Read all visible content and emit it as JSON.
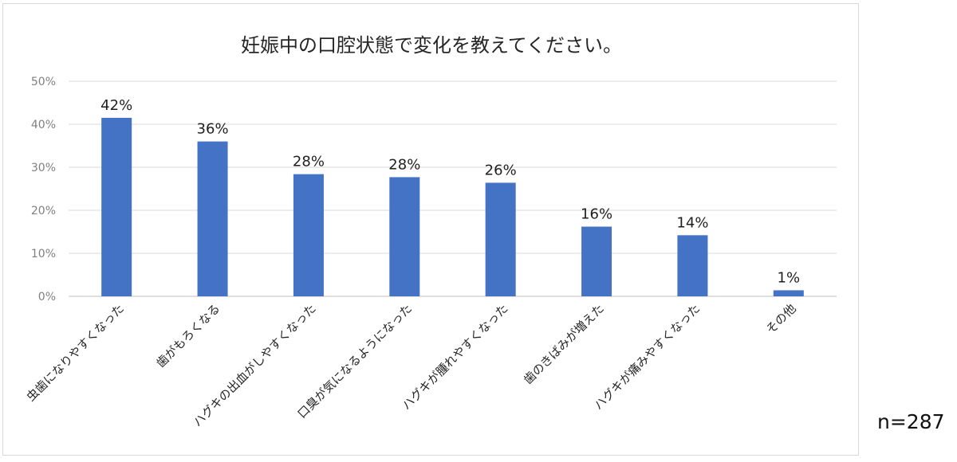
{
  "chart_data": {
    "type": "bar",
    "title": "妊娠中の口腔状態で変化を教えてください。",
    "categories": [
      "虫歯になりやすくなった",
      "歯がもろくなる",
      "ハグキの出血がしやすくなった",
      "口臭が気になるようになった",
      "ハグキが腫れやすくなった",
      "歯のきばみが増えた",
      "ハグキが痛みやすくなった",
      "その他"
    ],
    "values": [
      42,
      36,
      28,
      28,
      26,
      16,
      14,
      1
    ],
    "value_labels": [
      "42%",
      "36%",
      "28%",
      "28%",
      "26%",
      "16%",
      "14%",
      "1%"
    ],
    "bar_heights_pct": [
      41.5,
      36.0,
      28.4,
      27.7,
      26.4,
      16.2,
      14.2,
      1.4
    ],
    "yticks": [
      "0%",
      "10%",
      "20%",
      "30%",
      "40%",
      "50%"
    ],
    "ylim": [
      0,
      50
    ],
    "grid": true,
    "bar_color": "#4472c4",
    "xlabel": "",
    "ylabel": ""
  },
  "note": "n=287"
}
